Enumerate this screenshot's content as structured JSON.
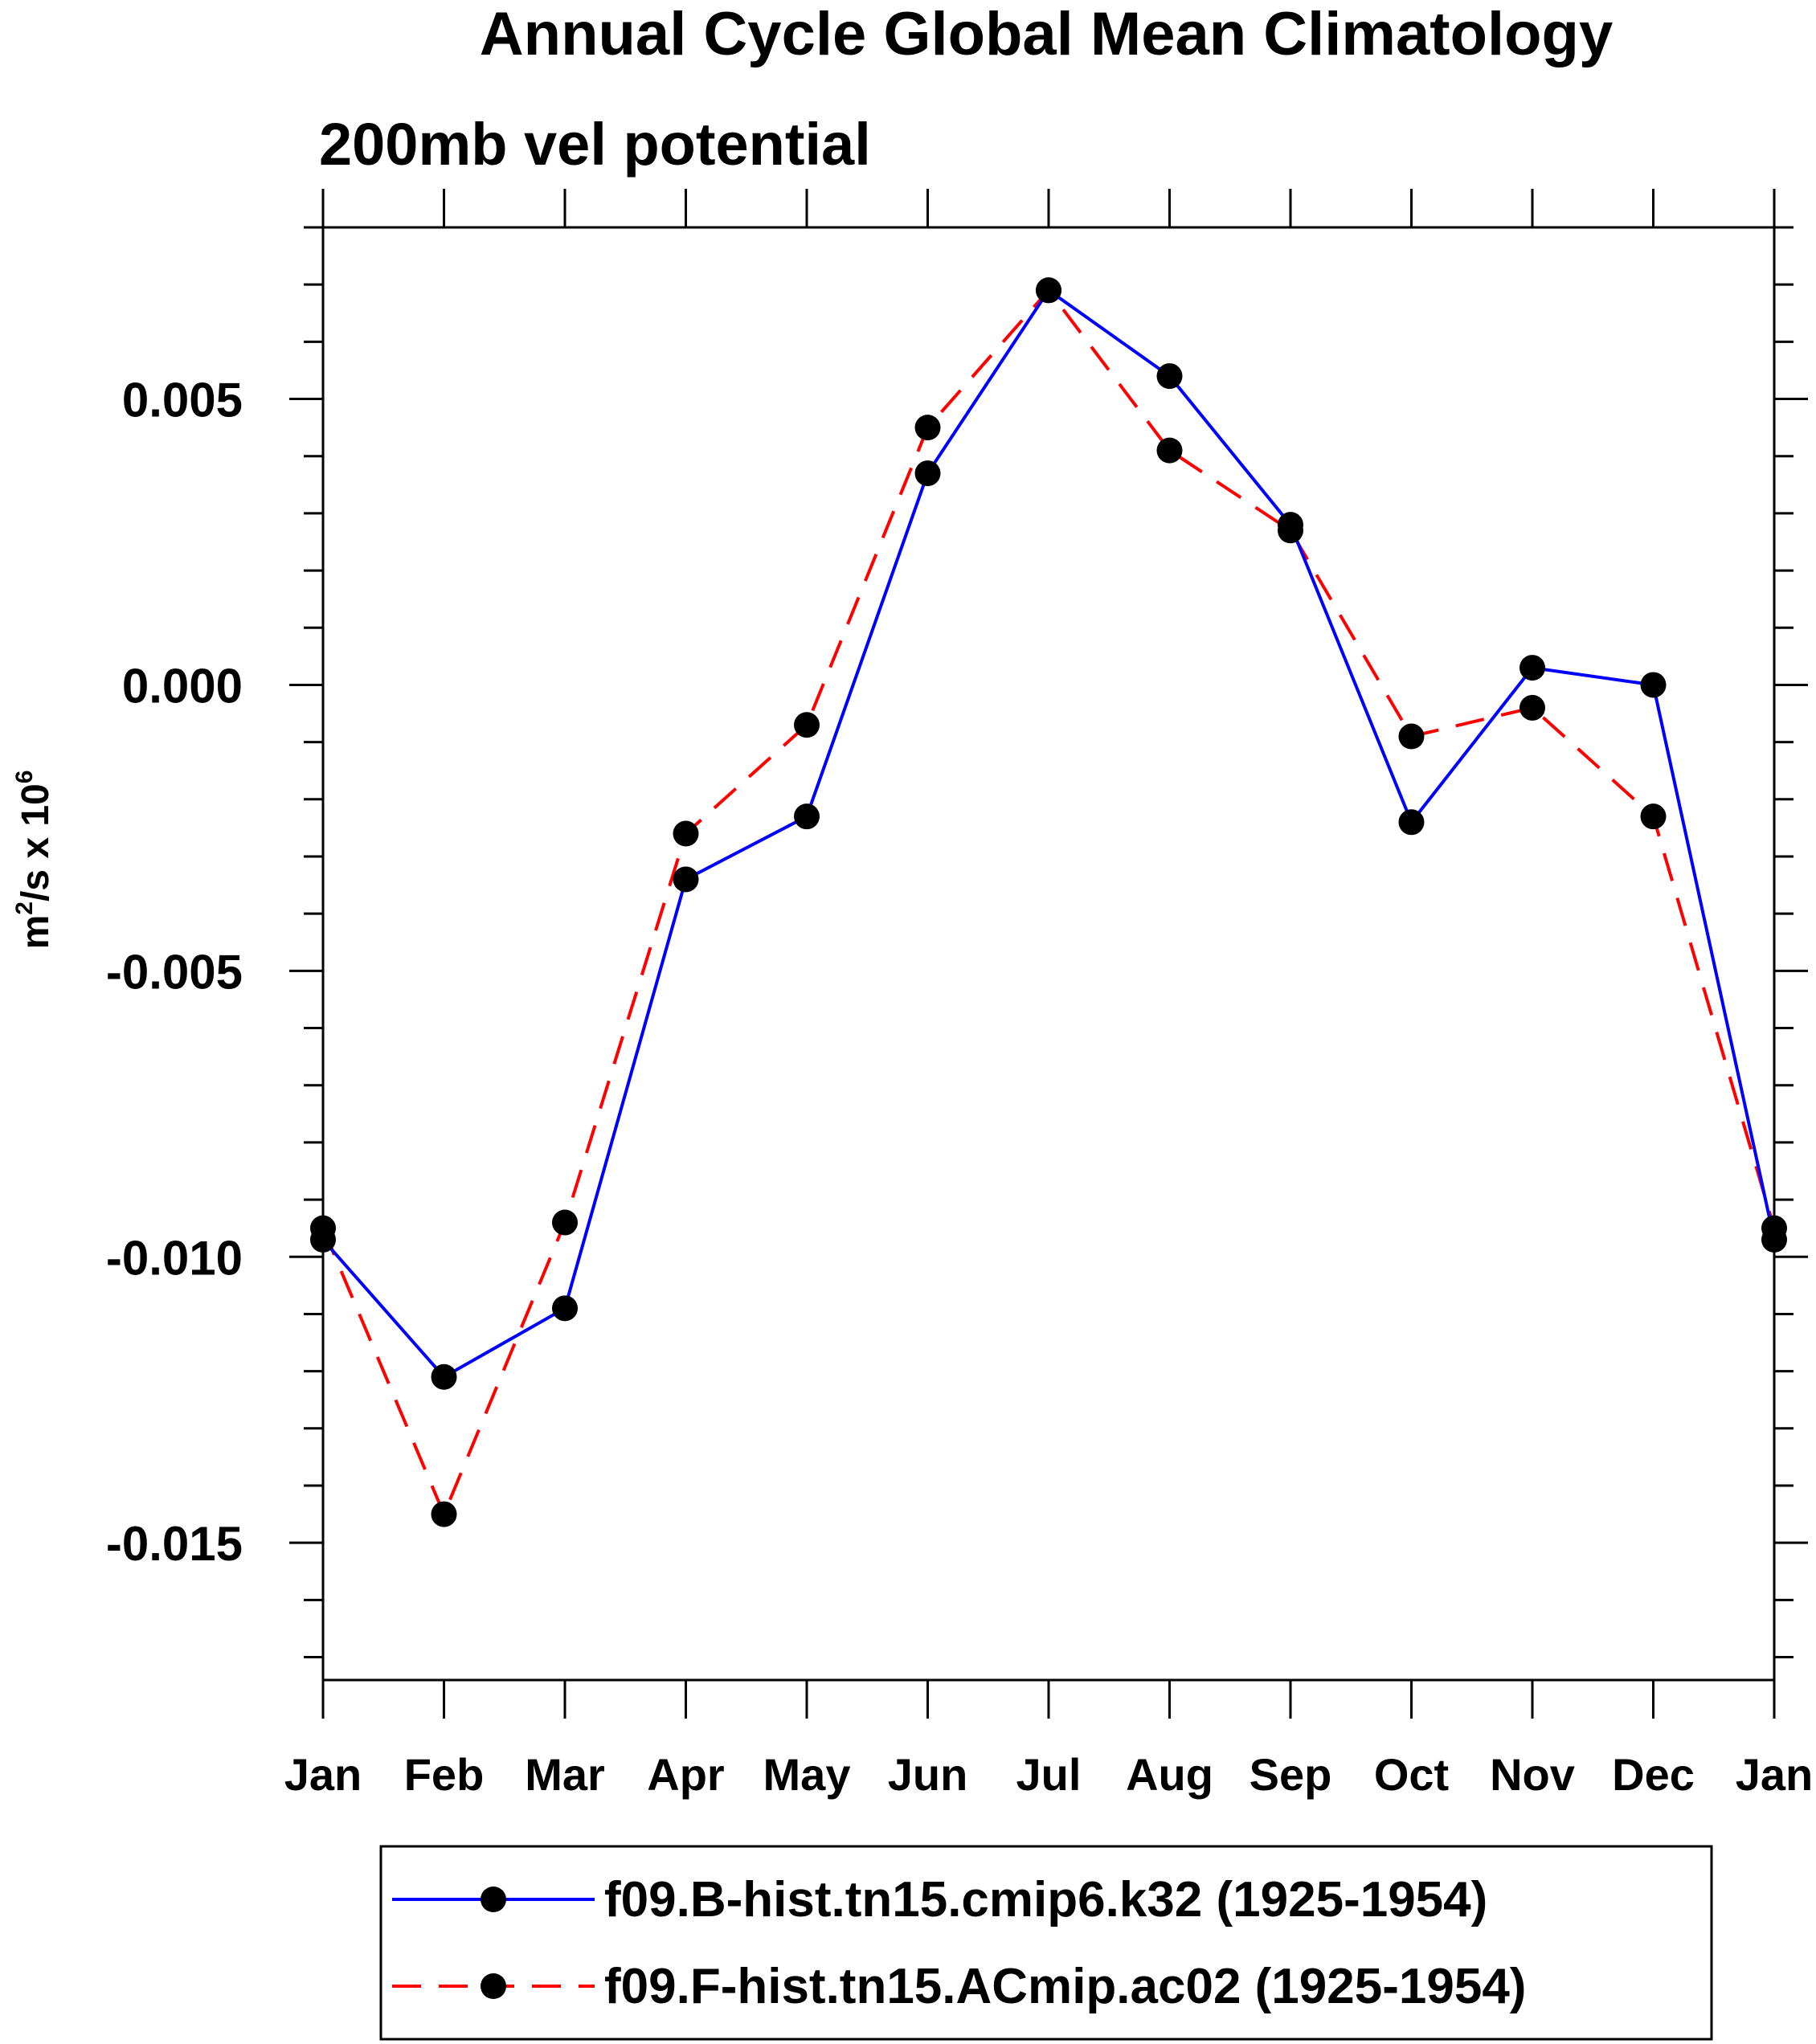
{
  "chart_data": {
    "type": "line",
    "title": "Annual Cycle Global Mean Climatology",
    "subtitle": "200mb vel potential",
    "ylabel_base": "m",
    "ylabel_sup": "2",
    "ylabel_mid": "/s x 10",
    "ylabel_exp": "6",
    "xlabel": "",
    "categories": [
      "Jan",
      "Feb",
      "Mar",
      "Apr",
      "May",
      "Jun",
      "Jul",
      "Aug",
      "Sep",
      "Oct",
      "Nov",
      "Dec",
      "Jan"
    ],
    "ylim": [
      -0.0174,
      0.008
    ],
    "yticks": [
      0.005,
      0.0,
      -0.005,
      -0.01,
      -0.015
    ],
    "ytick_labels": [
      "0.005",
      "0.000",
      "-0.005",
      "-0.010",
      "-0.015"
    ],
    "series": [
      {
        "name": "f09.B-hist.tn15.cmip6.k32 (1925-1954)",
        "color": "#0000ff",
        "dash": "solid",
        "values": [
          -0.0097,
          -0.0121,
          -0.0109,
          -0.0034,
          -0.0023,
          0.0037,
          0.0069,
          0.0054,
          0.0028,
          -0.0024,
          0.0003,
          0.0,
          -0.0097
        ]
      },
      {
        "name": "f09.F-hist.tn15.ACmip.ac02 (1925-1954)",
        "color": "#ff0000",
        "dash": "dashed",
        "values": [
          -0.0095,
          -0.0145,
          -0.0094,
          -0.0026,
          -0.0007,
          0.0045,
          0.0069,
          0.0041,
          0.0027,
          -0.0009,
          -0.0004,
          -0.0023,
          -0.0095
        ]
      }
    ],
    "grid": false,
    "legend_position": "bottom"
  }
}
